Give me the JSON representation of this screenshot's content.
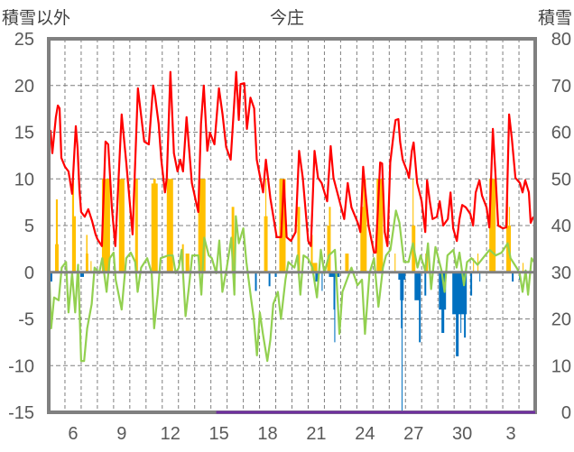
{
  "chart_data": {
    "type": "bar+line",
    "title": "今庄",
    "ylabel_left": "積雪以外",
    "ylabel_right": "積雪",
    "ylim_left": [
      -15,
      25
    ],
    "ylim_right": [
      0,
      80
    ],
    "xlim_days": [
      5,
      35
    ],
    "grid": true,
    "legend": "none",
    "y_ticks_left": [
      "25",
      "20",
      "15",
      "10",
      "5",
      "0",
      "-5",
      "-10",
      "-15"
    ],
    "y_ticks_left_values": [
      25,
      20,
      15,
      10,
      5,
      0,
      -5,
      -10,
      -15
    ],
    "y_ticks_right": [
      "80",
      "70",
      "60",
      "50",
      "40",
      "30",
      "20",
      "10",
      "0"
    ],
    "y_ticks_right_values": [
      80,
      70,
      60,
      50,
      40,
      30,
      20,
      10,
      0
    ],
    "x_ticks": [
      {
        "day": 6,
        "label": "6"
      },
      {
        "day": 9,
        "label": "9"
      },
      {
        "day": 12,
        "label": "12"
      },
      {
        "day": 15,
        "label": "15"
      },
      {
        "day": 18,
        "label": "18"
      },
      {
        "day": 21,
        "label": "21"
      },
      {
        "day": 24,
        "label": "24"
      },
      {
        "day": 27,
        "label": "27"
      },
      {
        "day": 30,
        "label": "30"
      },
      {
        "day": 33,
        "label": "3"
      }
    ],
    "colors": {
      "red_line": "#ff0000",
      "green_line": "#92d050",
      "orange_bars": "#ffc000",
      "blue_bars": "#0070c0",
      "purple_line": "#7030a0",
      "axis": "#808080"
    },
    "red_line_right_axis": [
      [
        5.0,
        58.9
      ],
      [
        5.11,
        60.3
      ],
      [
        5.22,
        55.5
      ],
      [
        5.44,
        63.2
      ],
      [
        5.56,
        65.7
      ],
      [
        5.67,
        65.1
      ],
      [
        5.78,
        54.5
      ],
      [
        6.0,
        52.6
      ],
      [
        6.22,
        51.6
      ],
      [
        6.44,
        46.8
      ],
      [
        6.67,
        61.3
      ],
      [
        6.78,
        56.4
      ],
      [
        6.89,
        47.7
      ],
      [
        7.0,
        42.9
      ],
      [
        7.22,
        41.9
      ],
      [
        7.44,
        43.5
      ],
      [
        7.67,
        41.0
      ],
      [
        7.89,
        38.1
      ],
      [
        8.0,
        37.1
      ],
      [
        8.28,
        35.6
      ],
      [
        8.5,
        58.0
      ],
      [
        8.67,
        57.4
      ],
      [
        8.89,
        43.9
      ],
      [
        9.11,
        35.6
      ],
      [
        9.5,
        63.8
      ],
      [
        9.78,
        53.5
      ],
      [
        10.17,
        38.1
      ],
      [
        10.5,
        69.4
      ],
      [
        10.89,
        58.0
      ],
      [
        11.17,
        57.4
      ],
      [
        11.44,
        70.0
      ],
      [
        11.56,
        67.6
      ],
      [
        11.78,
        61.8
      ],
      [
        11.94,
        54.1
      ],
      [
        12.17,
        47.1
      ],
      [
        12.28,
        50.2
      ],
      [
        12.5,
        72.9
      ],
      [
        12.72,
        55.5
      ],
      [
        12.94,
        51.6
      ],
      [
        13.11,
        54.1
      ],
      [
        13.28,
        51.6
      ],
      [
        13.5,
        63.2
      ],
      [
        13.83,
        49.1
      ],
      [
        14.22,
        42.9
      ],
      [
        14.39,
        61.8
      ],
      [
        14.56,
        70.0
      ],
      [
        14.78,
        56.0
      ],
      [
        14.94,
        59.9
      ],
      [
        15.22,
        57.4
      ],
      [
        15.5,
        69.4
      ],
      [
        15.72,
        63.8
      ],
      [
        15.94,
        56.8
      ],
      [
        16.22,
        54.1
      ],
      [
        16.56,
        72.9
      ],
      [
        16.72,
        62.6
      ],
      [
        16.83,
        70.3
      ],
      [
        17.06,
        70.5
      ],
      [
        17.22,
        60.7
      ],
      [
        17.44,
        67.4
      ],
      [
        17.67,
        65.1
      ],
      [
        17.83,
        54.1
      ],
      [
        18.22,
        47.1
      ],
      [
        18.39,
        54.1
      ],
      [
        18.67,
        45.8
      ],
      [
        19.06,
        37.5
      ],
      [
        19.33,
        37.5
      ],
      [
        19.5,
        49.7
      ],
      [
        19.67,
        37.5
      ],
      [
        19.94,
        36.7
      ],
      [
        20.22,
        38.6
      ],
      [
        20.44,
        56.0
      ],
      [
        20.67,
        50.2
      ],
      [
        21.0,
        36.7
      ],
      [
        21.17,
        35.6
      ],
      [
        21.39,
        56.0
      ],
      [
        21.61,
        50.2
      ],
      [
        21.83,
        49.1
      ],
      [
        22.17,
        45.2
      ],
      [
        22.39,
        57.0
      ],
      [
        22.56,
        50.2
      ],
      [
        22.94,
        45.2
      ],
      [
        23.22,
        41.4
      ],
      [
        23.44,
        49.1
      ],
      [
        23.67,
        43.9
      ],
      [
        24.06,
        40.6
      ],
      [
        24.22,
        38.6
      ],
      [
        24.39,
        52.6
      ],
      [
        24.72,
        40.0
      ],
      [
        25.06,
        34.2
      ],
      [
        25.17,
        34.2
      ],
      [
        25.44,
        53.5
      ],
      [
        25.56,
        53.3
      ],
      [
        25.72,
        38.6
      ],
      [
        25.89,
        35.6
      ],
      [
        26.06,
        53.5
      ],
      [
        26.28,
        59.9
      ],
      [
        26.39,
        62.6
      ],
      [
        26.56,
        62.8
      ],
      [
        26.67,
        58.0
      ],
      [
        26.83,
        54.1
      ],
      [
        27.11,
        51.6
      ],
      [
        27.22,
        50.2
      ],
      [
        27.39,
        56.0
      ],
      [
        27.5,
        57.8
      ],
      [
        27.72,
        49.1
      ],
      [
        28.0,
        45.2
      ],
      [
        28.22,
        38.6
      ],
      [
        28.33,
        49.7
      ],
      [
        28.5,
        45.2
      ],
      [
        28.67,
        41.4
      ],
      [
        28.94,
        41.9
      ],
      [
        29.11,
        45.2
      ],
      [
        29.33,
        40.0
      ],
      [
        29.61,
        41.4
      ],
      [
        29.78,
        47.1
      ],
      [
        29.94,
        39.4
      ],
      [
        30.17,
        36.7
      ],
      [
        30.33,
        41.4
      ],
      [
        30.5,
        44.4
      ],
      [
        30.72,
        43.9
      ],
      [
        31.0,
        42.5
      ],
      [
        31.17,
        40.0
      ],
      [
        31.33,
        47.1
      ],
      [
        31.56,
        49.7
      ],
      [
        31.72,
        46.4
      ],
      [
        32.0,
        43.9
      ],
      [
        32.17,
        39.6
      ],
      [
        32.39,
        60.7
      ],
      [
        32.56,
        50.2
      ],
      [
        32.72,
        40.0
      ],
      [
        33.0,
        39.4
      ],
      [
        33.22,
        39.6
      ],
      [
        33.39,
        63.8
      ],
      [
        33.56,
        58.7
      ],
      [
        33.78,
        50.2
      ],
      [
        34.06,
        49.1
      ],
      [
        34.22,
        47.1
      ],
      [
        34.39,
        49.7
      ],
      [
        34.61,
        47.1
      ],
      [
        34.72,
        40.6
      ],
      [
        34.89,
        41.9
      ]
    ],
    "green_line_left_axis": [
      [
        5.0,
        1.5
      ],
      [
        5.15,
        -6.0
      ],
      [
        5.33,
        -2.7
      ],
      [
        5.61,
        -3.0
      ],
      [
        5.8,
        0.5
      ],
      [
        6.07,
        1.1
      ],
      [
        6.22,
        -4.3
      ],
      [
        6.44,
        -0.1
      ],
      [
        6.63,
        -4.3
      ],
      [
        6.81,
        0.8
      ],
      [
        7.0,
        -9.5
      ],
      [
        7.18,
        -9.5
      ],
      [
        7.37,
        -6.0
      ],
      [
        7.65,
        -3.4
      ],
      [
        7.83,
        0.5
      ],
      [
        8.11,
        -0.1
      ],
      [
        8.3,
        1.5
      ],
      [
        8.57,
        -2.1
      ],
      [
        8.76,
        1.5
      ],
      [
        9.0,
        2.1
      ],
      [
        9.13,
        -0.8
      ],
      [
        9.5,
        -4.0
      ],
      [
        9.78,
        1.5
      ],
      [
        10.06,
        2.1
      ],
      [
        10.33,
        1.1
      ],
      [
        10.48,
        -2.1
      ],
      [
        10.7,
        0.5
      ],
      [
        11.07,
        1.5
      ],
      [
        11.35,
        -0.1
      ],
      [
        11.5,
        -6.0
      ],
      [
        11.72,
        -2.4
      ],
      [
        11.9,
        1.5
      ],
      [
        12.37,
        1.8
      ],
      [
        12.65,
        1.8
      ],
      [
        12.83,
        -0.1
      ],
      [
        13.02,
        0.5
      ],
      [
        13.2,
        2.4
      ],
      [
        13.44,
        -4.7
      ],
      [
        13.63,
        -1.8
      ],
      [
        13.85,
        1.8
      ],
      [
        14.22,
        1.8
      ],
      [
        14.41,
        -2.4
      ],
      [
        14.59,
        3.7
      ],
      [
        14.87,
        1.8
      ],
      [
        15.06,
        1.5
      ],
      [
        15.33,
        -0.1
      ],
      [
        15.52,
        3.4
      ],
      [
        15.71,
        -2.1
      ],
      [
        15.98,
        0.5
      ],
      [
        16.26,
        3.7
      ],
      [
        16.45,
        -2.4
      ],
      [
        16.54,
        6.0
      ],
      [
        16.72,
        3.1
      ],
      [
        17.0,
        4.7
      ],
      [
        17.19,
        1.1
      ],
      [
        17.47,
        -2.7
      ],
      [
        17.65,
        -5.0
      ],
      [
        17.84,
        -8.9
      ],
      [
        18.02,
        -4.3
      ],
      [
        18.21,
        -6.6
      ],
      [
        18.48,
        -9.5
      ],
      [
        18.67,
        -7.2
      ],
      [
        18.85,
        -3.4
      ],
      [
        19.13,
        -2.1
      ],
      [
        19.32,
        -5.0
      ],
      [
        19.6,
        -0.8
      ],
      [
        19.78,
        1.1
      ],
      [
        20.15,
        0.5
      ],
      [
        20.34,
        1.8
      ],
      [
        20.52,
        -2.4
      ],
      [
        20.71,
        1.8
      ],
      [
        20.98,
        1.5
      ],
      [
        21.26,
        0.5
      ],
      [
        21.54,
        -2.7
      ],
      [
        21.78,
        2.4
      ],
      [
        22.0,
        -0.1
      ],
      [
        22.28,
        1.8
      ],
      [
        22.65,
        2.4
      ],
      [
        22.93,
        -6.6
      ],
      [
        23.11,
        -2.1
      ],
      [
        23.39,
        -0.8
      ],
      [
        23.67,
        0.5
      ],
      [
        24.04,
        -1.4
      ],
      [
        24.32,
        -0.8
      ],
      [
        24.5,
        -6.6
      ],
      [
        24.78,
        -0.1
      ],
      [
        25.06,
        1.5
      ],
      [
        25.33,
        -3.7
      ],
      [
        25.61,
        0.5
      ],
      [
        25.8,
        1.8
      ],
      [
        26.07,
        2.4
      ],
      [
        26.41,
        6.6
      ],
      [
        26.63,
        5.3
      ],
      [
        26.91,
        1.1
      ],
      [
        27.19,
        1.1
      ],
      [
        27.46,
        3.1
      ],
      [
        27.74,
        0.5
      ],
      [
        27.93,
        1.8
      ],
      [
        28.21,
        0.2
      ],
      [
        28.39,
        3.1
      ],
      [
        28.58,
        -1.8
      ],
      [
        28.85,
        2.7
      ],
      [
        29.22,
        0.2
      ],
      [
        29.41,
        -2.1
      ],
      [
        29.59,
        1.8
      ],
      [
        29.96,
        2.4
      ],
      [
        30.15,
        0.5
      ],
      [
        30.33,
        2.1
      ],
      [
        30.61,
        -1.4
      ],
      [
        30.8,
        1.1
      ],
      [
        31.07,
        1.5
      ],
      [
        31.45,
        0.8
      ],
      [
        31.91,
        1.8
      ],
      [
        32.19,
        2.4
      ],
      [
        32.56,
        1.8
      ],
      [
        32.93,
        2.1
      ],
      [
        33.3,
        3.1
      ],
      [
        33.48,
        1.5
      ],
      [
        33.85,
        0.5
      ],
      [
        34.04,
        -0.1
      ],
      [
        34.22,
        -2.1
      ],
      [
        34.41,
        0.2
      ],
      [
        34.56,
        -2.4
      ],
      [
        34.78,
        1.5
      ],
      [
        34.93,
        1.1
      ]
    ],
    "orange_bars_left_axis": [
      [
        5.39,
        5.61,
        3
      ],
      [
        5.44,
        5.56,
        7.8
      ],
      [
        6.44,
        6.56,
        10
      ],
      [
        6.56,
        6.67,
        6
      ],
      [
        7.28,
        7.44,
        2
      ],
      [
        7.31,
        7.39,
        4
      ],
      [
        7.58,
        7.64,
        1.2
      ],
      [
        8.28,
        8.78,
        10
      ],
      [
        9.33,
        9.67,
        10
      ],
      [
        10.33,
        10.5,
        10
      ],
      [
        11.33,
        11.72,
        9.5
      ],
      [
        11.45,
        11.6,
        10
      ],
      [
        12.28,
        12.67,
        10
      ],
      [
        13.22,
        13.33,
        3
      ],
      [
        13.44,
        13.67,
        2
      ],
      [
        14.22,
        14.67,
        10
      ],
      [
        16.28,
        16.44,
        7
      ],
      [
        18.28,
        18.5,
        6
      ],
      [
        18.36,
        18.42,
        10
      ],
      [
        19.22,
        19.61,
        10
      ],
      [
        20.33,
        20.5,
        7
      ],
      [
        21.17,
        21.28,
        4
      ],
      [
        21.28,
        21.56,
        1
      ],
      [
        22.17,
        22.28,
        5
      ],
      [
        22.28,
        22.39,
        7
      ],
      [
        23.28,
        23.5,
        2
      ],
      [
        24.22,
        24.61,
        7
      ],
      [
        24.39,
        24.56,
        10
      ],
      [
        25.22,
        25.61,
        10
      ],
      [
        26.33,
        26.39,
        2
      ],
      [
        27.39,
        27.61,
        5
      ],
      [
        27.44,
        27.5,
        10
      ],
      [
        28.22,
        28.39,
        2
      ],
      [
        31.17,
        31.22,
        1.5
      ],
      [
        31.44,
        31.5,
        2
      ],
      [
        32.17,
        32.56,
        10
      ],
      [
        33.22,
        33.5,
        5
      ],
      [
        33.28,
        33.33,
        10
      ],
      [
        33.39,
        33.44,
        7
      ],
      [
        34.22,
        34.28,
        1
      ]
    ],
    "blue_bars_left_axis": [
      [
        5.11,
        5.22,
        -1
      ],
      [
        6.06,
        6.17,
        -0.8
      ],
      [
        6.94,
        7.17,
        -0.5
      ],
      [
        17.72,
        17.83,
        -2
      ],
      [
        18.56,
        18.67,
        -1.5
      ],
      [
        18.94,
        19.06,
        -0.5
      ],
      [
        21.44,
        21.67,
        -1
      ],
      [
        21.83,
        21.89,
        -2
      ],
      [
        22.28,
        22.94,
        -0.5
      ],
      [
        22.56,
        22.67,
        -4
      ],
      [
        22.61,
        22.67,
        -7.5
      ],
      [
        26.56,
        27.0,
        -0.8
      ],
      [
        26.67,
        26.89,
        -3
      ],
      [
        26.72,
        26.83,
        -6
      ],
      [
        26.76,
        26.81,
        -15
      ],
      [
        27.56,
        27.94,
        -3
      ],
      [
        27.83,
        27.94,
        -7.5
      ],
      [
        28.17,
        28.28,
        -2.5
      ],
      [
        29.06,
        29.5,
        -4
      ],
      [
        29.22,
        29.39,
        -6.5
      ],
      [
        29.89,
        30.78,
        -4.5
      ],
      [
        30.11,
        30.28,
        -9
      ],
      [
        30.39,
        30.44,
        -6.5
      ],
      [
        30.61,
        30.72,
        -7
      ],
      [
        31.0,
        31.11,
        -2.5
      ],
      [
        31.56,
        31.61,
        -1
      ],
      [
        33.56,
        33.67,
        -1
      ],
      [
        34.0,
        34.06,
        -0.8
      ]
    ],
    "purple_line_right_axis": [
      [
        15.33,
        0
      ],
      [
        35.0,
        0
      ]
    ]
  }
}
